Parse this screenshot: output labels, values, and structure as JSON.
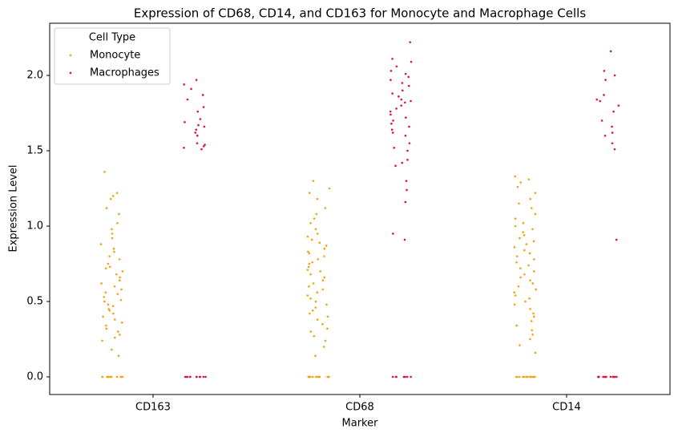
{
  "chart_data": {
    "type": "strip",
    "title": "Expression of CD68, CD14, and CD163 for Monocyte and Macrophage Cells",
    "x_label": "Marker",
    "y_label": "Expression Level",
    "categories": [
      "CD163",
      "CD68",
      "CD14"
    ],
    "legend_title": "Cell Type",
    "legend_position": "upper-left",
    "ylim": [
      -0.117,
      2.346
    ],
    "yticks": [
      {
        "value": 0,
        "label": "0.0"
      },
      0.5,
      {
        "value": 1,
        "label": "1.0"
      },
      1.5,
      {
        "value": 2,
        "label": "2.0"
      }
    ],
    "series": [
      {
        "name": "Monocyte",
        "color": "#f5a00f",
        "values": [
          [
            1.36,
            1.22,
            1.2,
            1.18,
            1.12,
            1.08,
            1.02,
            0.98,
            0.95,
            0.92,
            0.88,
            0.85,
            0.83,
            0.8,
            0.78,
            0.75,
            0.73,
            0.72,
            0.7,
            0.68,
            0.66,
            0.64,
            0.62,
            0.6,
            0.58,
            0.56,
            0.55,
            0.53,
            0.51,
            0.5,
            0.48,
            0.47,
            0.45,
            0.44,
            0.42,
            0.4,
            0.38,
            0.36,
            0.34,
            0.32,
            0.3,
            0.28,
            0.26,
            0.24,
            0.18,
            0.14,
            0,
            0,
            0,
            0,
            0,
            0,
            0,
            0,
            0,
            0,
            0,
            0
          ],
          [
            1.3,
            1.25,
            1.22,
            1.18,
            1.12,
            1.08,
            1.05,
            1.02,
            0.98,
            0.95,
            0.93,
            0.91,
            0.89,
            0.87,
            0.85,
            0.83,
            0.82,
            0.8,
            0.78,
            0.76,
            0.75,
            0.73,
            0.71,
            0.7,
            0.68,
            0.66,
            0.64,
            0.62,
            0.6,
            0.58,
            0.56,
            0.54,
            0.52,
            0.5,
            0.48,
            0.46,
            0.44,
            0.42,
            0.4,
            0.38,
            0.35,
            0.32,
            0.3,
            0.27,
            0.24,
            0.2,
            0.14,
            0,
            0,
            0,
            0,
            0,
            0,
            0,
            0,
            0,
            0,
            0,
            0
          ],
          [
            1.33,
            1.31,
            1.29,
            1.26,
            1.22,
            1.18,
            1.15,
            1.12,
            1.08,
            1.05,
            1.02,
            1.0,
            0.98,
            0.96,
            0.94,
            0.92,
            0.9,
            0.88,
            0.86,
            0.84,
            0.82,
            0.8,
            0.78,
            0.76,
            0.74,
            0.72,
            0.7,
            0.68,
            0.66,
            0.64,
            0.62,
            0.6,
            0.58,
            0.56,
            0.54,
            0.52,
            0.5,
            0.48,
            0.45,
            0.42,
            0.4,
            0.37,
            0.34,
            0.31,
            0.28,
            0.25,
            0.21,
            0.16,
            0,
            0,
            0,
            0,
            0,
            0,
            0,
            0,
            0,
            0,
            0,
            0
          ]
        ]
      },
      {
        "name": "Macrophages",
        "color": "#dc143c",
        "values": [
          [
            1.97,
            1.94,
            1.91,
            1.87,
            1.84,
            1.79,
            1.76,
            1.71,
            1.69,
            1.67,
            1.66,
            1.64,
            1.62,
            1.6,
            1.55,
            1.54,
            1.53,
            1.52,
            1.51,
            0,
            0,
            0,
            0,
            0,
            0,
            0,
            0,
            0,
            0,
            0,
            0
          ],
          [
            2.22,
            2.11,
            2.09,
            2.06,
            2.03,
            2.01,
            1.99,
            1.97,
            1.95,
            1.93,
            1.9,
            1.88,
            1.86,
            1.84,
            1.83,
            1.82,
            1.8,
            1.78,
            1.76,
            1.74,
            1.72,
            1.7,
            1.68,
            1.66,
            1.64,
            1.62,
            1.6,
            1.55,
            1.52,
            1.5,
            1.44,
            1.42,
            1.4,
            1.3,
            1.24,
            1.16,
            0.95,
            0.91,
            0,
            0,
            0,
            0,
            0,
            0,
            0,
            0
          ],
          [
            2.16,
            2.03,
            2.0,
            1.97,
            1.87,
            1.84,
            1.83,
            1.8,
            1.76,
            1.7,
            1.66,
            1.62,
            1.6,
            1.55,
            1.51,
            0.91,
            0,
            0,
            0,
            0,
            0,
            0,
            0,
            0,
            0,
            0,
            0,
            0,
            0,
            0
          ]
        ]
      }
    ]
  }
}
